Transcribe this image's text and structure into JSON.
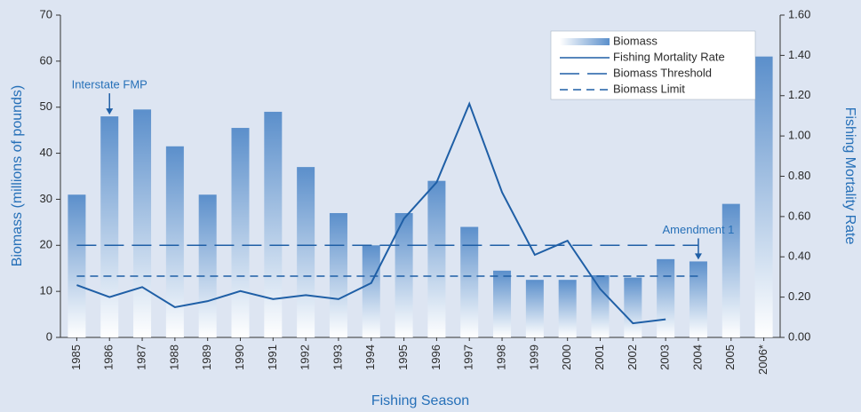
{
  "chart_data": {
    "type": "bar",
    "x_label": "Fishing Season",
    "y_label": "Biomass (millions of pounds)",
    "y2_label": "Fishing Mortality Rate",
    "categories": [
      "1985",
      "1986",
      "1987",
      "1988",
      "1989",
      "1990",
      "1991",
      "1992",
      "1993",
      "1994",
      "1995",
      "1996",
      "1997",
      "1998",
      "1999",
      "2000",
      "2001",
      "2002",
      "2003",
      "2004",
      "2005",
      "2006*"
    ],
    "series": [
      {
        "name": "Biomass",
        "type": "bar",
        "color": "#5b8fcb",
        "values": [
          31,
          48,
          49.5,
          41.5,
          31,
          45.5,
          49,
          37,
          27,
          20,
          27,
          34,
          24,
          14.5,
          12.5,
          12.5,
          13.5,
          13,
          17,
          16.5,
          29,
          61
        ]
      },
      {
        "name": "Fishing Mortality Rate",
        "type": "line",
        "axis": "y2",
        "style": "solid",
        "color": "#1f5fa6",
        "values": [
          0.26,
          0.2,
          0.25,
          0.15,
          0.18,
          0.23,
          0.19,
          0.21,
          0.19,
          0.27,
          0.59,
          0.77,
          1.16,
          0.72,
          0.41,
          0.48,
          0.24,
          0.07,
          0.09,
          null,
          null,
          null
        ]
      },
      {
        "name": "Biomass Threshold",
        "type": "line",
        "style": "long-dash",
        "color": "#1f5fa6",
        "values": [
          20,
          20,
          20,
          20,
          20,
          20,
          20,
          20,
          20,
          20,
          20,
          20,
          20,
          20,
          20,
          20,
          20,
          20,
          20,
          20,
          null,
          null
        ]
      },
      {
        "name": "Biomass Limit",
        "type": "line",
        "style": "short-dash",
        "color": "#1f5fa6",
        "values": [
          13.3,
          13.3,
          13.3,
          13.3,
          13.3,
          13.3,
          13.3,
          13.3,
          13.3,
          13.3,
          13.3,
          13.3,
          13.3,
          13.3,
          13.3,
          13.3,
          13.3,
          13.3,
          13.3,
          13.3,
          null,
          null
        ]
      }
    ],
    "annotations": [
      {
        "text": "Interstate FMP",
        "category": "1986"
      },
      {
        "text": "Amendment 1",
        "category": "2004"
      }
    ],
    "ylim": [
      0,
      70
    ],
    "yticks": [
      0,
      10,
      20,
      30,
      40,
      50,
      60,
      70
    ],
    "y2lim": [
      0,
      1.6
    ],
    "y2ticks": [
      {
        "value": 0,
        "label": "0.00"
      },
      {
        "value": 0.2,
        "label": "0.20"
      },
      {
        "value": 0.4,
        "label": "0.40"
      },
      {
        "value": 0.6,
        "label": "0.60"
      },
      {
        "value": 0.8,
        "label": "0.80"
      },
      {
        "value": 1.0,
        "label": "1.00"
      },
      {
        "value": 1.2,
        "label": "1.20"
      },
      {
        "value": 1.4,
        "label": "1.40"
      },
      {
        "value": 1.6,
        "label": "1.60"
      }
    ],
    "legend": "upper right"
  }
}
